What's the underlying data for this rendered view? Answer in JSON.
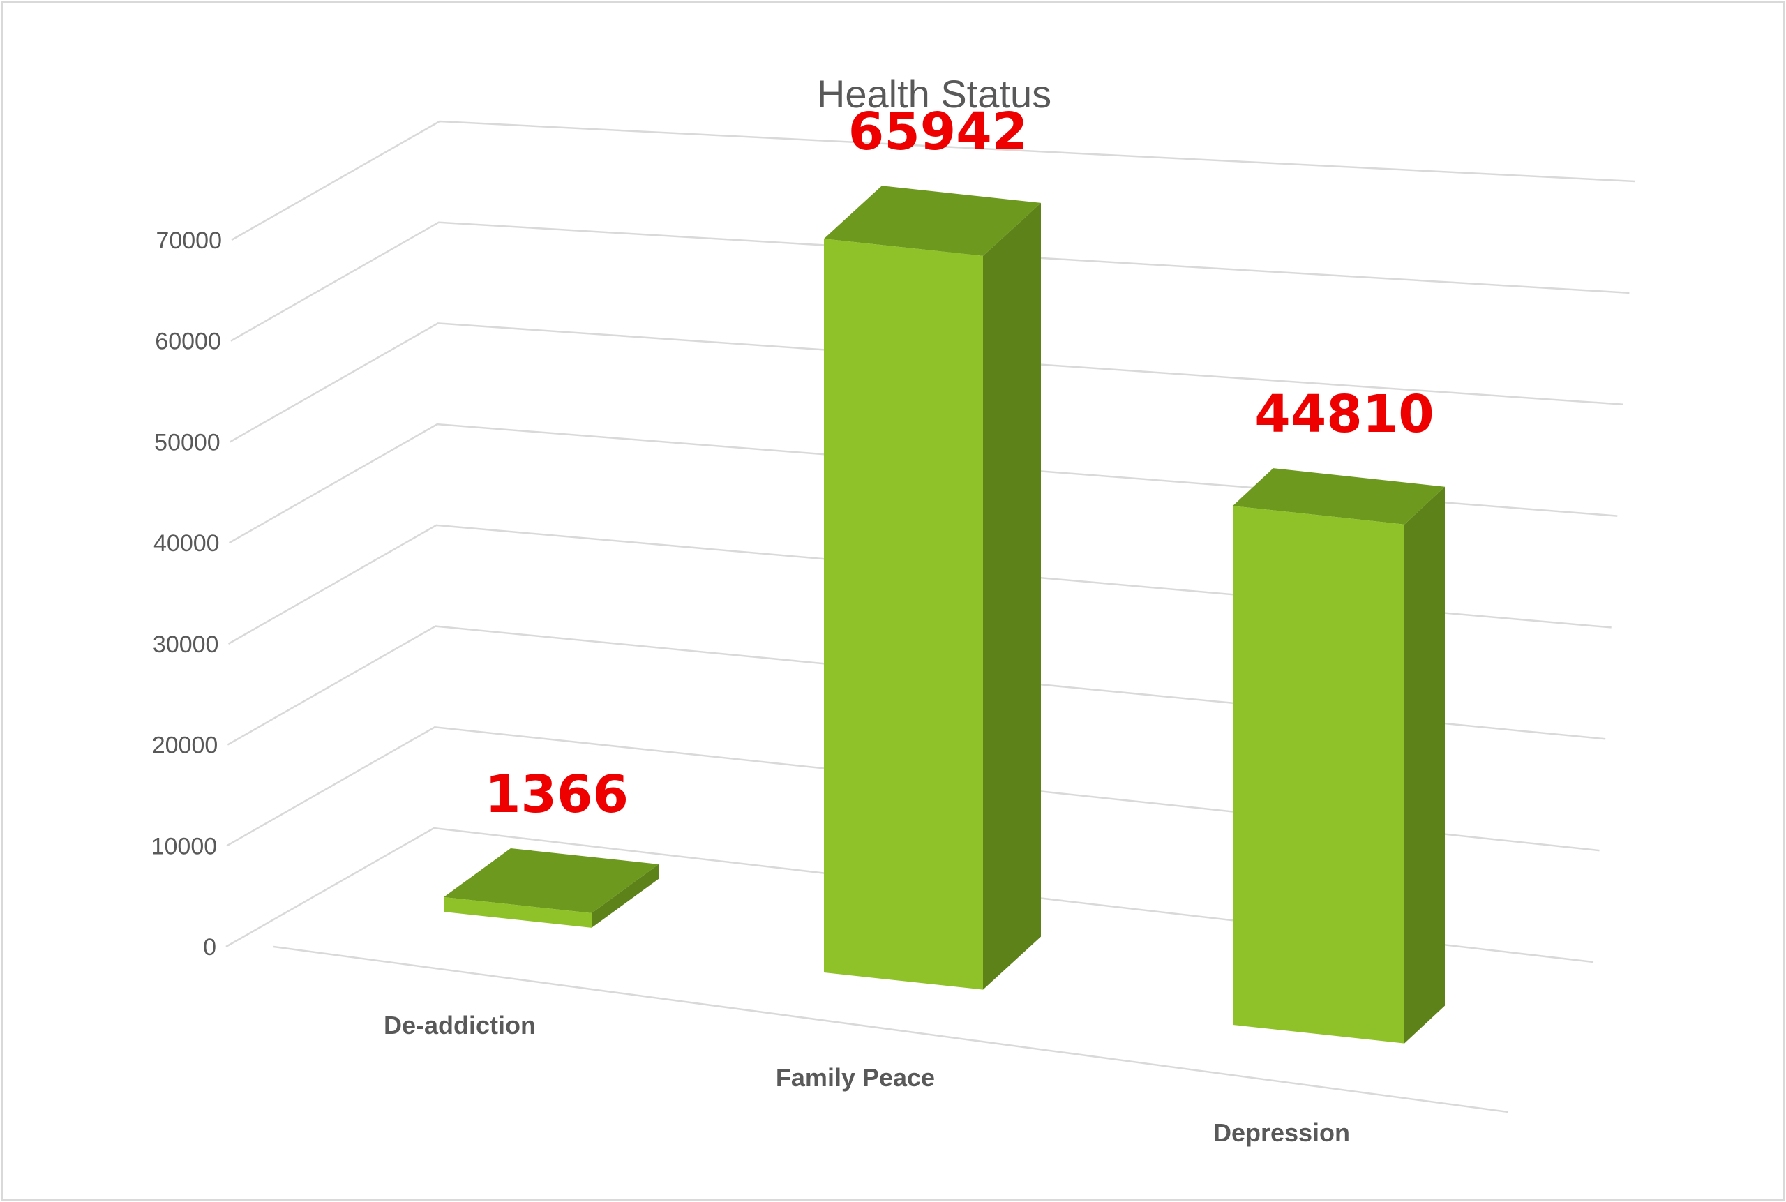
{
  "chart_data": {
    "type": "bar",
    "title": "Health Status",
    "categories": [
      "De-addiction",
      "Family Peace",
      "Depression"
    ],
    "series": [
      {
        "values": [
          1366,
          65942,
          44810
        ]
      }
    ],
    "data_labels": [
      "1366",
      "65942",
      "44810"
    ],
    "y_ticks": [
      "0",
      "10000",
      "20000",
      "30000",
      "40000",
      "50000",
      "60000",
      "70000"
    ],
    "ylim": [
      0,
      70000
    ],
    "grid": true,
    "legend": "none",
    "style": "3d-column",
    "colors": {
      "bar_front": "#8fc128",
      "bar_top": "#6d9a1e",
      "bar_side": "#5e821a",
      "data_label": "#ee0000",
      "grid": "#d9d9d9",
      "text": "#595959"
    }
  }
}
